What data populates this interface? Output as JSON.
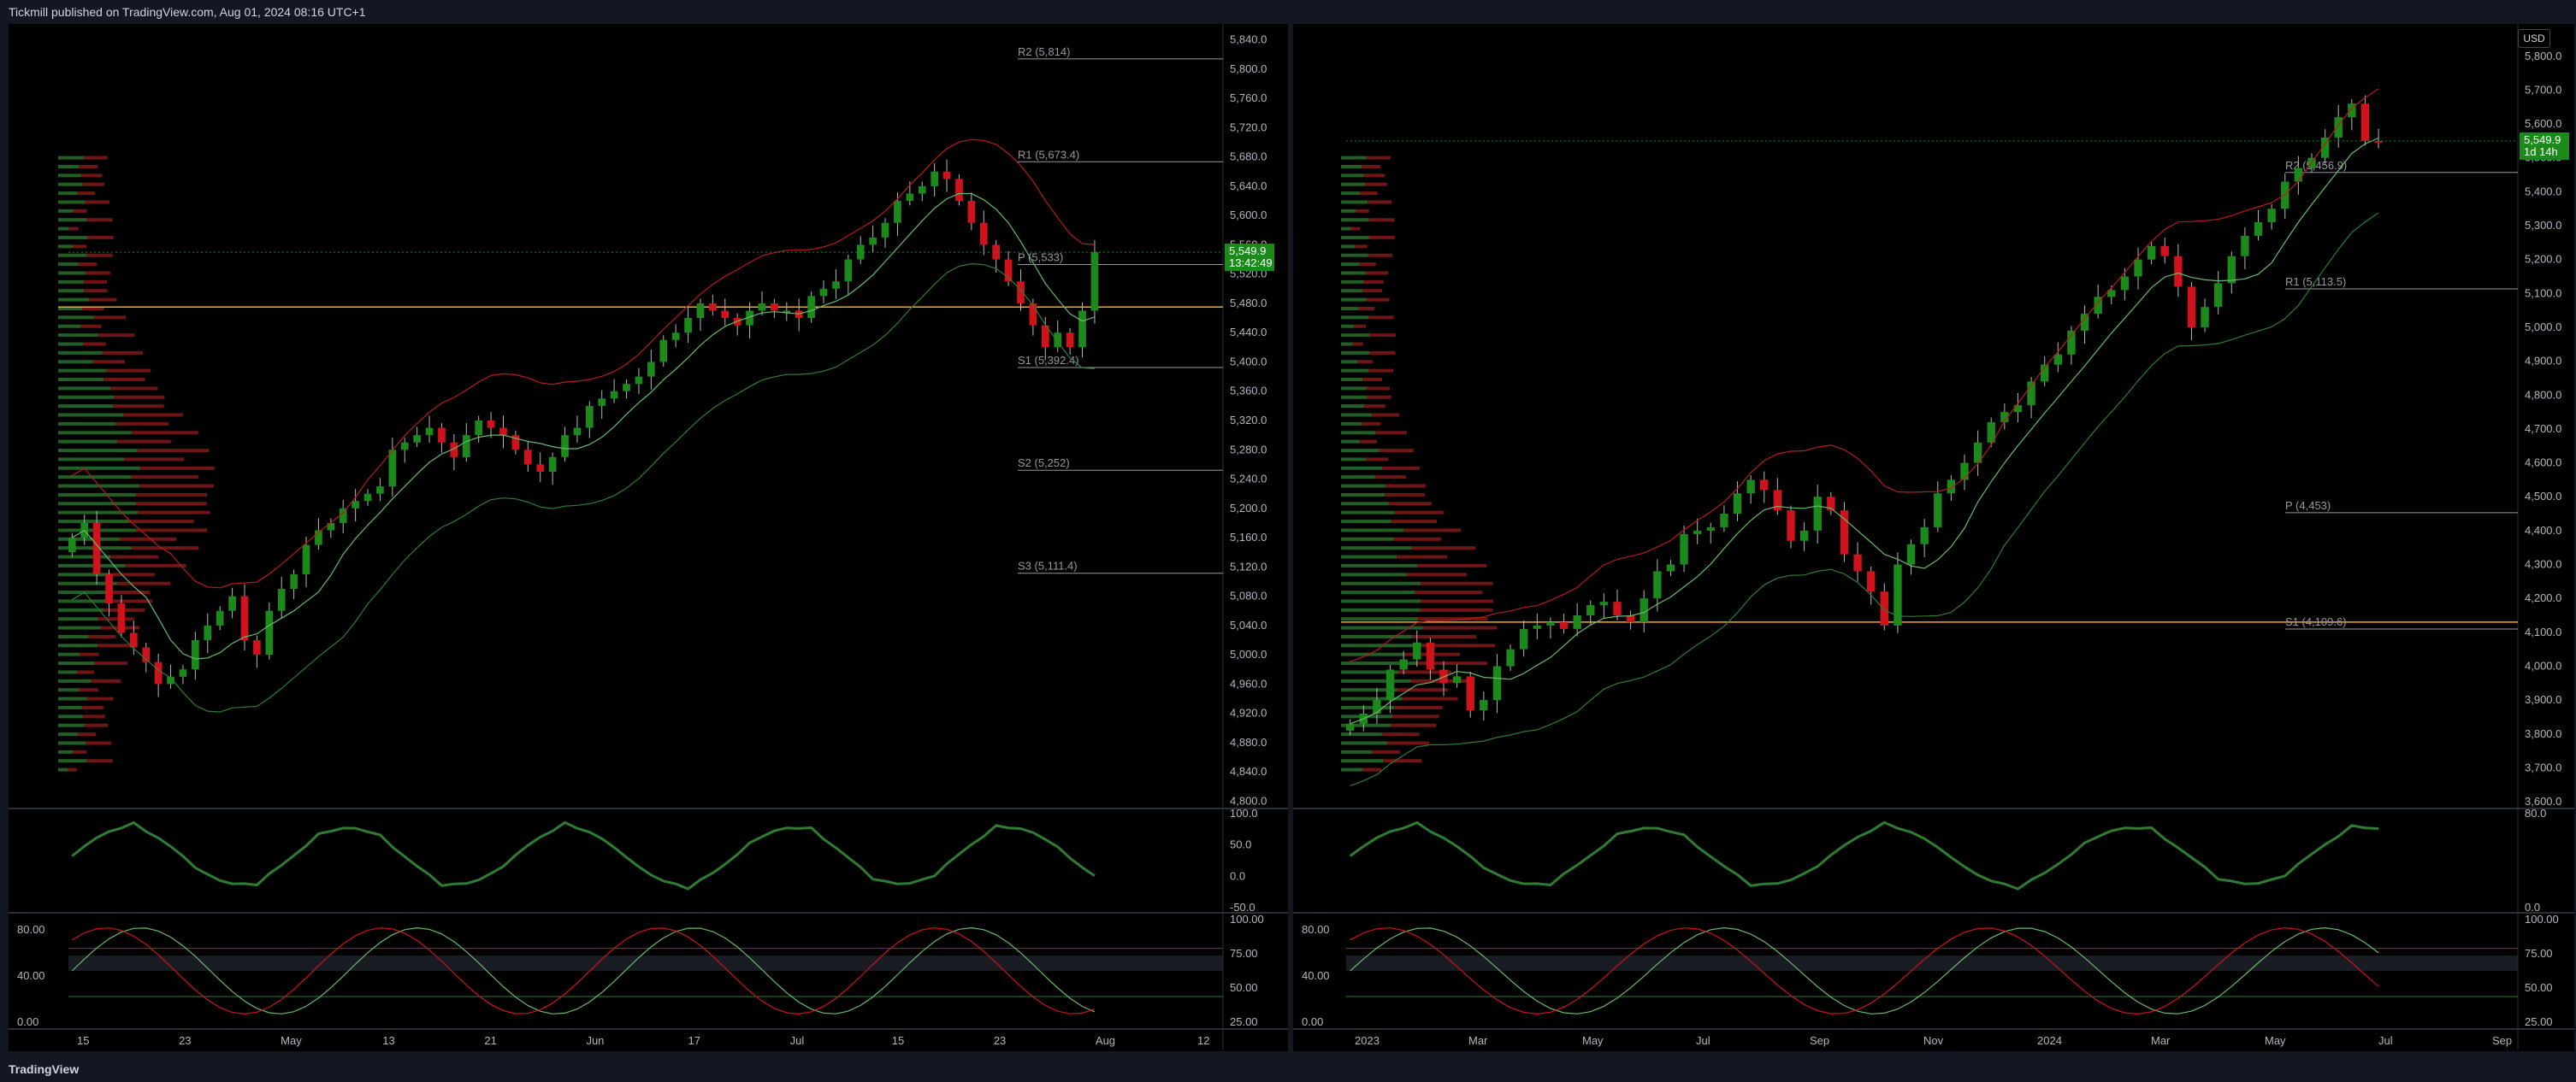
{
  "header": {
    "published": "Tickmill published on TradingView.com, Aug 01, 2024 08:16 UTC+1"
  },
  "footer": {
    "brand": "TradingView"
  },
  "currency": "USD",
  "colors": {
    "up": "#089981",
    "up_bright": "#1b8a1b",
    "down": "#d0121b",
    "poc": "#f5a623",
    "hvn": "#9c27b0",
    "bg": "#000000"
  },
  "chart_data": [
    {
      "type": "candlestick",
      "timeframe": "daily",
      "y_ticks": [
        "5,840.0",
        "5,800.0",
        "5,760.0",
        "5,720.0",
        "5,680.0",
        "5,640.0",
        "5,600.0",
        "5,560.0",
        "5,520.0",
        "5,480.0",
        "5,440.0",
        "5,400.0",
        "5,360.0",
        "5,320.0",
        "5,280.0",
        "5,240.0",
        "5,200.0",
        "5,160.0",
        "5,120.0",
        "5,080.0",
        "5,040.0",
        "5,000.0",
        "4,960.0",
        "4,920.0",
        "4,880.0",
        "4,840.0",
        "4,800.0"
      ],
      "ylim": [
        4790,
        5850
      ],
      "x_ticks": [
        "15",
        "23",
        "May",
        "13",
        "21",
        "Jun",
        "17",
        "Jul",
        "15",
        "23",
        "Aug",
        "12"
      ],
      "last_price": "5,549.9",
      "countdown": "13:42:49",
      "pivots": [
        {
          "label": "R2 (5,814)",
          "value": 5814
        },
        {
          "label": "R1 (5,673.4)",
          "value": 5673.4
        },
        {
          "label": "P (5,533)",
          "value": 5533
        },
        {
          "label": "S1 (5,392.4)",
          "value": 5392.4
        },
        {
          "label": "S2 (5,252)",
          "value": 5252
        },
        {
          "label": "S3 (5,111.4)",
          "value": 5111.4
        }
      ],
      "closes": [
        5160,
        5180,
        5110,
        5070,
        5030,
        5010,
        4990,
        4960,
        4970,
        4980,
        5020,
        5040,
        5060,
        5080,
        5020,
        5000,
        5060,
        5090,
        5110,
        5150,
        5170,
        5180,
        5200,
        5210,
        5220,
        5230,
        5280,
        5290,
        5300,
        5310,
        5290,
        5270,
        5300,
        5320,
        5310,
        5300,
        5280,
        5260,
        5250,
        5270,
        5300,
        5310,
        5340,
        5350,
        5360,
        5370,
        5380,
        5400,
        5430,
        5440,
        5460,
        5480,
        5470,
        5460,
        5450,
        5470,
        5480,
        5470,
        5470,
        5460,
        5490,
        5500,
        5510,
        5540,
        5560,
        5570,
        5590,
        5620,
        5630,
        5640,
        5660,
        5650,
        5620,
        5590,
        5560,
        5540,
        5510,
        5480,
        5450,
        5420,
        5440,
        5420,
        5470,
        5549.9
      ],
      "rsi": {
        "ticks": [
          "100.0",
          "50.0",
          "0.0",
          "-50.0"
        ]
      },
      "stoch": {
        "ticks_right": [
          "100.00",
          "75.00",
          "50.00",
          "25.00"
        ],
        "ticks_left": [
          "80.00",
          "40.00",
          "0.00"
        ]
      }
    },
    {
      "type": "candlestick",
      "timeframe": "weekly",
      "y_ticks": [
        "5,800.0",
        "5,700.0",
        "5,600.0",
        "5,500.0",
        "5,400.0",
        "5,300.0",
        "5,200.0",
        "5,100.0",
        "5,000.0",
        "4,900.0",
        "4,800.0",
        "4,700.0",
        "4,600.0",
        "4,500.0",
        "4,400.0",
        "4,300.0",
        "4,200.0",
        "4,100.0",
        "4,000.0",
        "3,900.0",
        "3,800.0",
        "3,700.0",
        "3,600.0"
      ],
      "ylim": [
        3580,
        5870
      ],
      "x_ticks": [
        "2023",
        "Mar",
        "May",
        "Jul",
        "Sep",
        "Nov",
        "2024",
        "Mar",
        "May",
        "Jul",
        "Sep"
      ],
      "last_price": "5,549.9",
      "countdown": "1d 14h",
      "pivots": [
        {
          "label": "R2 (5,456.9)",
          "value": 5456.9
        },
        {
          "label": "R1 (5,113.5)",
          "value": 5113.5
        },
        {
          "label": "P (4,453)",
          "value": 4453
        },
        {
          "label": "S1 (4,109.6)",
          "value": 4109.6
        }
      ],
      "closes": [
        3830,
        3860,
        3900,
        3990,
        4020,
        4070,
        3990,
        3950,
        3970,
        3870,
        3900,
        4000,
        4050,
        4110,
        4120,
        4130,
        4110,
        4150,
        4180,
        4190,
        4150,
        4130,
        4200,
        4280,
        4300,
        4390,
        4400,
        4410,
        4450,
        4510,
        4550,
        4520,
        4460,
        4370,
        4400,
        4500,
        4460,
        4330,
        4280,
        4220,
        4120,
        4300,
        4360,
        4410,
        4510,
        4550,
        4600,
        4660,
        4720,
        4750,
        4770,
        4840,
        4890,
        4920,
        4990,
        5040,
        5090,
        5110,
        5150,
        5200,
        5240,
        5210,
        5120,
        5000,
        5060,
        5130,
        5210,
        5270,
        5310,
        5350,
        5430,
        5470,
        5500,
        5560,
        5620,
        5660,
        5550,
        5549.9
      ],
      "rsi": {
        "ticks": [
          "80.0",
          "0.0"
        ]
      },
      "stoch": {
        "ticks_right": [
          "100.00",
          "75.00",
          "50.00",
          "25.00"
        ],
        "ticks_left": [
          "80.00",
          "40.00",
          "0.00"
        ]
      }
    }
  ]
}
